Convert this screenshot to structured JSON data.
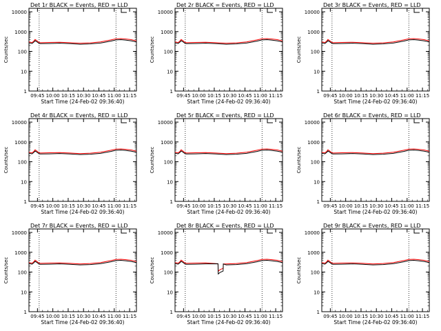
{
  "panels": [
    {
      "title": "Det 1r BLACK = Events, RED = LLD",
      "anomaly": false
    },
    {
      "title": "Det 2r BLACK = Events, RED = LLD",
      "anomaly": false
    },
    {
      "title": "Det 3r BLACK = Events, RED = LLD",
      "anomaly": false
    },
    {
      "title": "Det 4r BLACK = Events, RED = LLD",
      "anomaly": false
    },
    {
      "title": "Det 5r BLACK = Events, RED = LLD",
      "anomaly": false
    },
    {
      "title": "Det 6r BLACK = Events, RED = LLD",
      "anomaly": false
    },
    {
      "title": "Det 7r BLACK = Events, RED = LLD",
      "anomaly": false
    },
    {
      "title": "Det 8r BLACK = Events, RED = LLD",
      "anomaly": true
    },
    {
      "title": "Det 9r BLACK = Events, RED = LLD",
      "anomaly": false
    }
  ],
  "ylabel": "Counts/sec",
  "xlabel": "Start Time (24-Feb-02 09:36:40)",
  "yticks": [
    "1",
    "10",
    "100",
    "1000",
    "10000"
  ],
  "xticks": [
    "09:45",
    "10:00",
    "10:15",
    "10:30",
    "10:45",
    "11:00",
    "11:15"
  ],
  "colors": {
    "events": "#000000",
    "lld": "#ff0000"
  },
  "chart_data": {
    "type": "line",
    "x_unit": "minutes after 09:36:40",
    "xlim": [
      0,
      105
    ],
    "ylim": [
      1,
      15000
    ],
    "yscale": "log",
    "dotted_vlines_x": [
      10,
      85
    ],
    "series": [
      {
        "name": "BLACK = Events",
        "x": [
          0,
          3,
          5,
          6,
          8,
          9,
          11,
          20,
          30,
          40,
          50,
          60,
          70,
          80,
          85,
          90,
          95,
          100,
          105
        ],
        "values": [
          270,
          250,
          300,
          350,
          300,
          270,
          245,
          250,
          260,
          245,
          230,
          240,
          265,
          330,
          380,
          390,
          370,
          340,
          300
        ]
      },
      {
        "name": "RED = LLD",
        "x": [
          0,
          3,
          5,
          6,
          8,
          9,
          11,
          20,
          30,
          40,
          50,
          60,
          70,
          80,
          85,
          90,
          95,
          100,
          105
        ],
        "values": [
          300,
          280,
          340,
          400,
          340,
          300,
          275,
          285,
          290,
          275,
          255,
          270,
          300,
          380,
          430,
          440,
          420,
          390,
          340
        ]
      }
    ]
  }
}
